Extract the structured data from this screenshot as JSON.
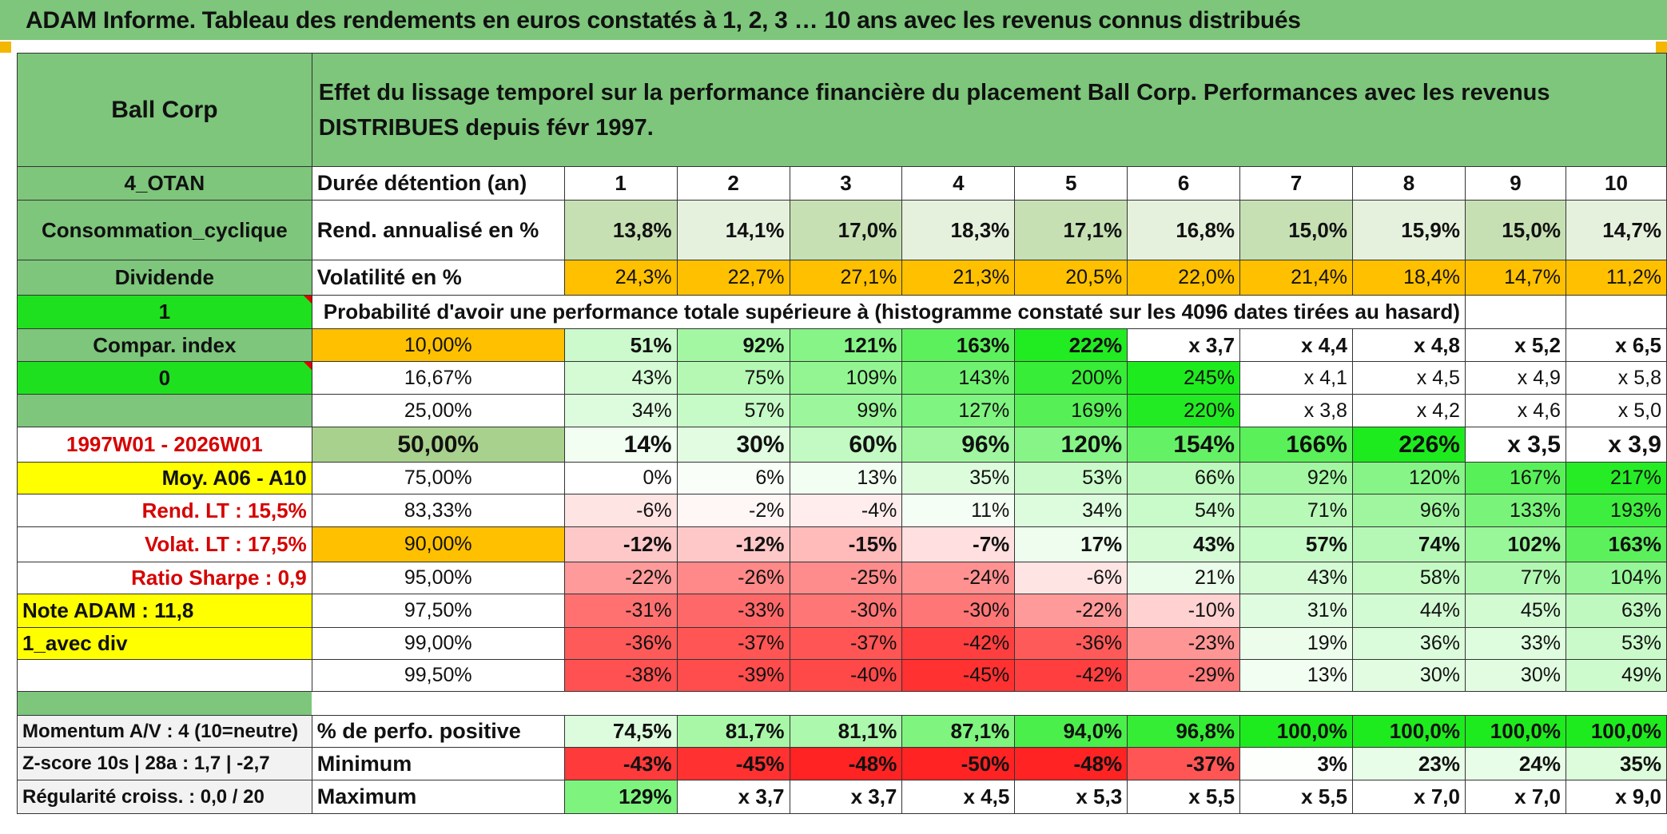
{
  "title": "ADAM Informe. Tableau des rendements en euros constatés à 1, 2, 3 … 10 ans avec les revenus connus distribués",
  "colors": {
    "header_green": "#7dc67b",
    "bright_green": "#1fe01f",
    "orange": "#ffc000",
    "yellow": "#ffff00",
    "red_text": "#d60000"
  },
  "header": {
    "company": "Ball Corp",
    "description": "Effet du lissage temporel sur la performance financière du placement Ball Corp. Performances avec les revenus DISTRIBUES depuis févr 1997."
  },
  "left_labels": {
    "otan": "4_OTAN",
    "sector": "Consommation_cyclique",
    "dividend": "Dividende",
    "one": "1",
    "compar_index": "Compar. index",
    "zero": "0",
    "period": "1997W01 - 2026W01",
    "moy": "Moy. A06 - A10",
    "rend_lt": "Rend. LT :    15,5%",
    "volat_lt": "Volat. LT :    17,5%",
    "sharpe": "Ratio Sharpe :    0,9",
    "note": "Note ADAM : 11,8",
    "avec_div": "1_avec div",
    "momentum": "Momentum A/V : 4 (10=neutre)",
    "zscore": "Z-score 10s | 28a : 1,7 | -2,7",
    "regularite": "Régularité croiss. : 0,0 / 20"
  },
  "row_labels": {
    "duree": "Durée détention (an)",
    "rend": "Rend. annualisé en %",
    "volat": "Volatilité en %",
    "prob_title": "Probabilité d'avoir une performance totale supérieure à (histogramme constaté sur les 4096 dates tirées au hasard)",
    "pos": "% de perfo. positive",
    "min": "Minimum",
    "max": "Maximum"
  },
  "years": [
    "1",
    "2",
    "3",
    "4",
    "5",
    "6",
    "7",
    "8",
    "9",
    "10"
  ],
  "rend": [
    "13,8%",
    "14,1%",
    "17,0%",
    "18,3%",
    "17,1%",
    "16,8%",
    "15,0%",
    "15,9%",
    "15,0%",
    "14,7%"
  ],
  "volat": [
    "24,3%",
    "22,7%",
    "27,1%",
    "21,3%",
    "20,5%",
    "22,0%",
    "21,4%",
    "18,4%",
    "14,7%",
    "11,2%"
  ],
  "prob_rows": [
    {
      "p": "10,00%",
      "values": [
        "51%",
        "92%",
        "121%",
        "163%",
        "222%",
        "x 3,7",
        "x 4,4",
        "x 4,8",
        "x 5,2",
        "x 6,5"
      ]
    },
    {
      "p": "16,67%",
      "values": [
        "43%",
        "75%",
        "109%",
        "143%",
        "200%",
        "245%",
        "x 4,1",
        "x 4,5",
        "x 4,9",
        "x 5,8"
      ]
    },
    {
      "p": "25,00%",
      "values": [
        "34%",
        "57%",
        "99%",
        "127%",
        "169%",
        "220%",
        "x 3,8",
        "x 4,2",
        "x 4,6",
        "x 5,0"
      ]
    },
    {
      "p": "50,00%",
      "values": [
        "14%",
        "30%",
        "60%",
        "96%",
        "120%",
        "154%",
        "166%",
        "226%",
        "x 3,5",
        "x 3,9"
      ]
    },
    {
      "p": "75,00%",
      "values": [
        "0%",
        "6%",
        "13%",
        "35%",
        "53%",
        "66%",
        "92%",
        "120%",
        "167%",
        "217%"
      ]
    },
    {
      "p": "83,33%",
      "values": [
        "-6%",
        "-2%",
        "-4%",
        "11%",
        "34%",
        "54%",
        "71%",
        "96%",
        "133%",
        "193%"
      ]
    },
    {
      "p": "90,00%",
      "values": [
        "-12%",
        "-12%",
        "-15%",
        "-7%",
        "17%",
        "43%",
        "57%",
        "74%",
        "102%",
        "163%"
      ]
    },
    {
      "p": "95,00%",
      "values": [
        "-22%",
        "-26%",
        "-25%",
        "-24%",
        "-6%",
        "21%",
        "43%",
        "58%",
        "77%",
        "104%"
      ]
    },
    {
      "p": "97,50%",
      "values": [
        "-31%",
        "-33%",
        "-30%",
        "-30%",
        "-22%",
        "-10%",
        "31%",
        "44%",
        "45%",
        "63%"
      ]
    },
    {
      "p": "99,00%",
      "values": [
        "-36%",
        "-37%",
        "-37%",
        "-42%",
        "-36%",
        "-23%",
        "19%",
        "36%",
        "33%",
        "53%"
      ]
    },
    {
      "p": "99,50%",
      "values": [
        "-38%",
        "-39%",
        "-40%",
        "-45%",
        "-42%",
        "-29%",
        "13%",
        "30%",
        "30%",
        "49%"
      ]
    }
  ],
  "pos": [
    "74,5%",
    "81,7%",
    "81,1%",
    "87,1%",
    "94,0%",
    "96,8%",
    "100,0%",
    "100,0%",
    "100,0%",
    "100,0%"
  ],
  "min": [
    "-43%",
    "-45%",
    "-48%",
    "-50%",
    "-48%",
    "-37%",
    "3%",
    "23%",
    "24%",
    "35%"
  ],
  "max": [
    "129%",
    "x 3,7",
    "x 3,7",
    "x 4,5",
    "x 5,3",
    "x 5,5",
    "x 5,5",
    "x 7,0",
    "x 7,0",
    "x 9,0"
  ]
}
